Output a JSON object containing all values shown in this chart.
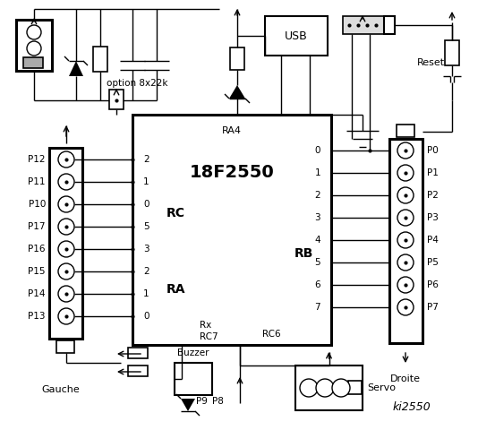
{
  "title": "ki2550",
  "bg_color": "#ffffff",
  "ic_label_top": "RA4",
  "ic_label_main": "18F2550",
  "ic_label_rc": "RC",
  "ic_label_ra": "RA",
  "ic_label_rb": "RB",
  "ic_label_rc6": "RC6",
  "left_connector_pins": [
    "P12",
    "P11",
    "P10",
    "P17",
    "P16",
    "P15",
    "P14",
    "P13"
  ],
  "right_connector_pins": [
    "P0",
    "P1",
    "P2",
    "P3",
    "P4",
    "P5",
    "P6",
    "P7"
  ],
  "rc_pins": [
    "2",
    "1",
    "0",
    "5",
    "3",
    "2",
    "1",
    "0"
  ],
  "rb_pins": [
    "0",
    "1",
    "2",
    "3",
    "4",
    "5",
    "6",
    "7"
  ],
  "option_text": "option 8x22k",
  "gauche_text": "Gauche",
  "droite_text": "Droite",
  "buzzer_text": "Buzzer",
  "servo_text": "Servo",
  "usb_text": "USB",
  "reset_text": "Reset",
  "p8_text": "P8",
  "p9_text": "P9"
}
